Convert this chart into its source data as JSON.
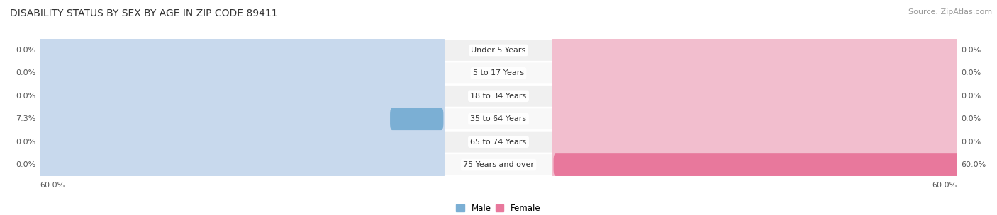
{
  "title": "DISABILITY STATUS BY SEX BY AGE IN ZIP CODE 89411",
  "source": "Source: ZipAtlas.com",
  "categories": [
    "Under 5 Years",
    "5 to 17 Years",
    "18 to 34 Years",
    "35 to 64 Years",
    "65 to 74 Years",
    "75 Years and over"
  ],
  "male_values": [
    0.0,
    0.0,
    0.0,
    7.3,
    0.0,
    0.0
  ],
  "female_values": [
    0.0,
    0.0,
    0.0,
    0.0,
    0.0,
    60.0
  ],
  "male_color": "#7bafd4",
  "female_color": "#e8789c",
  "male_bg_color": "#c8d9ed",
  "female_bg_color": "#f2bece",
  "row_color_odd": "#f0f0f0",
  "row_color_even": "#f8f8f8",
  "male_label": "Male",
  "female_label": "Female",
  "axis_limit": 60.0,
  "title_fontsize": 10,
  "source_fontsize": 8,
  "label_fontsize": 8,
  "tick_fontsize": 8,
  "category_fontsize": 8
}
